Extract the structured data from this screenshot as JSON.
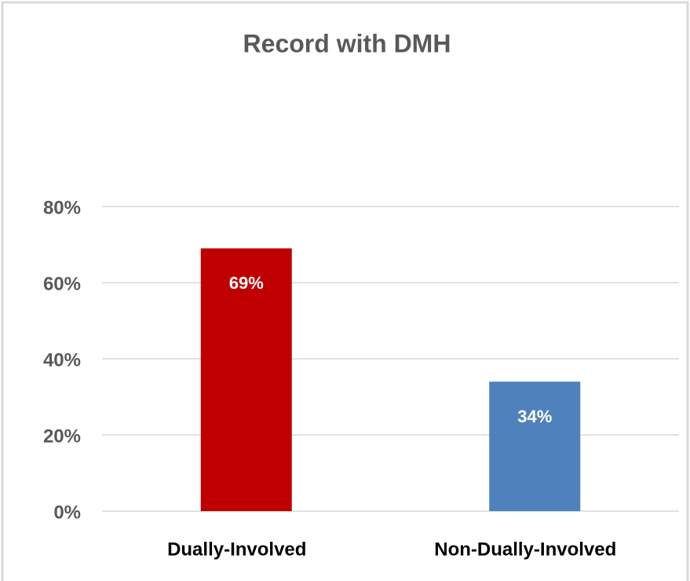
{
  "chart_data": {
    "type": "bar",
    "title": "Record with DMH",
    "categories": [
      "Dually-Involved",
      "Non-Dually-Involved"
    ],
    "values": [
      69,
      34
    ],
    "value_labels": [
      "69%",
      "34%"
    ],
    "colors": [
      "#c00000",
      "#4f81bd"
    ],
    "ylim": [
      0,
      100
    ],
    "yticks": [
      {
        "value": 0,
        "label": "0%"
      },
      {
        "value": 20,
        "label": "20%"
      },
      {
        "value": 40,
        "label": "40%"
      },
      {
        "value": 60,
        "label": "60%"
      },
      {
        "value": 80,
        "label": "80%"
      }
    ],
    "grid": true
  }
}
